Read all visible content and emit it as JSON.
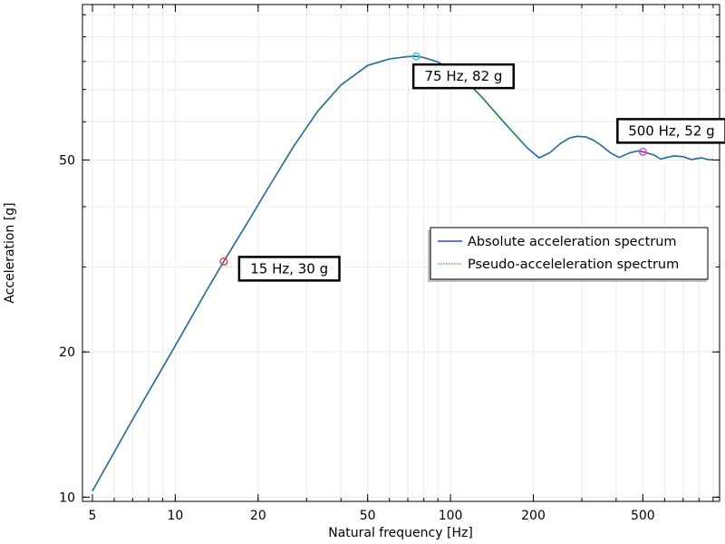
{
  "chart_data": {
    "type": "line",
    "xlabel": "Natural frequency [Hz]",
    "ylabel": "Acceleration [g]",
    "x_scale": "log",
    "y_scale": "log",
    "xlim": [
      4.6,
      950
    ],
    "ylim": [
      9.8,
      105
    ],
    "x_ticks": [
      5,
      10,
      20,
      50,
      100,
      200,
      500
    ],
    "x_tick_labels": [
      "5",
      "10",
      "20",
      "50",
      "100",
      "200",
      "500"
    ],
    "y_ticks": [
      10,
      20,
      50
    ],
    "y_tick_labels": [
      "10",
      "20",
      "50"
    ],
    "grid": true,
    "legend_position": "center-right",
    "series": [
      {
        "name": "Absolute acceleration spectrum",
        "color": "#1f4fbf",
        "style": "solid",
        "x": [
          5,
          7,
          10,
          13,
          15,
          18,
          22,
          27,
          33,
          40,
          50,
          60,
          70,
          75,
          80,
          90,
          100,
          115,
          130,
          150,
          170,
          190,
          210,
          230,
          250,
          270,
          290,
          310,
          330,
          350,
          380,
          410,
          450,
          480,
          500,
          550,
          580,
          610,
          650,
          700,
          750,
          780,
          820,
          850,
          880,
          900
        ],
        "y": [
          10.3,
          14.5,
          20.6,
          26.8,
          30.8,
          36.5,
          44.2,
          53.5,
          63.2,
          71.5,
          78.5,
          81.0,
          81.9,
          82.0,
          81.5,
          79.8,
          77.0,
          72.5,
          67.5,
          61.5,
          56.8,
          53.0,
          50.5,
          51.8,
          54.0,
          55.5,
          56.0,
          55.8,
          55.0,
          53.8,
          51.8,
          50.6,
          51.8,
          52.2,
          52.0,
          51.2,
          50.2,
          50.6,
          51.0,
          50.8,
          50.1,
          50.3,
          50.5,
          50.2,
          50.0,
          50.1
        ]
      },
      {
        "name": "Pseudo-acceleleration spectrum",
        "color": "#2ca02c",
        "style": "dotted",
        "x": [
          5,
          7,
          10,
          13,
          15,
          18,
          22,
          27,
          33,
          40,
          50,
          60,
          70,
          75,
          80,
          90,
          100,
          115,
          130,
          150,
          170,
          190,
          210,
          230,
          250,
          270,
          290,
          310,
          330,
          350,
          380,
          410,
          450,
          480,
          500,
          550,
          580,
          610,
          650,
          700,
          750,
          780,
          820,
          850,
          880,
          900
        ],
        "y": [
          10.3,
          14.5,
          20.6,
          26.8,
          30.8,
          36.5,
          44.2,
          53.5,
          63.2,
          71.5,
          78.5,
          81.0,
          81.9,
          82.0,
          81.5,
          79.8,
          77.0,
          72.5,
          67.5,
          61.5,
          56.8,
          53.0,
          50.5,
          51.8,
          54.0,
          55.5,
          56.0,
          55.8,
          55.0,
          53.8,
          51.8,
          50.6,
          51.8,
          52.2,
          52.0,
          51.2,
          50.2,
          50.6,
          51.0,
          50.8,
          50.1,
          50.3,
          50.5,
          50.2,
          50.0,
          50.1
        ]
      }
    ],
    "annotations": [
      {
        "text": "15 Hz, 30 g",
        "x": 15,
        "y": 30.8,
        "marker_color": "#e8393a",
        "label_position": "right"
      },
      {
        "text": "75 Hz, 82 g",
        "x": 75,
        "y": 82.0,
        "marker_color": "#2fc6e8",
        "label_position": "below"
      },
      {
        "text": "500 Hz, 52 g",
        "x": 500,
        "y": 52.0,
        "marker_color": "#e03ad8",
        "label_position": "above"
      }
    ]
  }
}
